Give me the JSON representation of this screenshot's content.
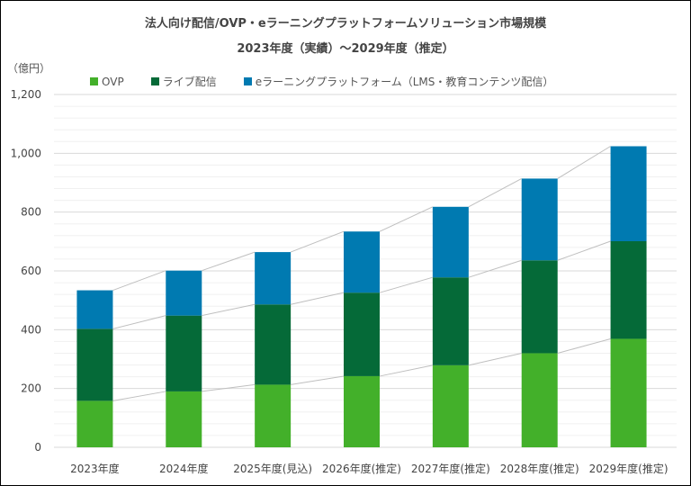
{
  "chart_data": {
    "type": "bar",
    "stacked": true,
    "title": "法人向け配信/OVP・eラーニングプラットフォームソリューション市場規模",
    "subtitle": "2023年度（実績）～2029年度（推定）",
    "ylabel": "（億円）",
    "categories": [
      "2023年度",
      "2024年度",
      "2025年度(見込)",
      "2026年度(推定)",
      "2027年度(推定)",
      "2028年度(推定)",
      "2029年度(推定)"
    ],
    "series": [
      {
        "name": "OVP",
        "color": "#43b02a",
        "values": [
          158,
          190,
          213,
          242,
          279,
          320,
          369
        ]
      },
      {
        "name": "ライブ配信",
        "color": "#056a38",
        "values": [
          245,
          258,
          273,
          284,
          299,
          316,
          332
        ]
      },
      {
        "name": "eラーニングプラットフォーム（LMS・教育コンテンツ配信）",
        "color": "#007ab1",
        "values": [
          131,
          153,
          178,
          208,
          240,
          278,
          323
        ]
      }
    ],
    "ylim": [
      0,
      1200
    ],
    "yticks": [
      "0",
      "200",
      "400",
      "600",
      "800",
      "1,000",
      "1,200"
    ],
    "grid": true,
    "legend": "top",
    "series_lines": true
  }
}
